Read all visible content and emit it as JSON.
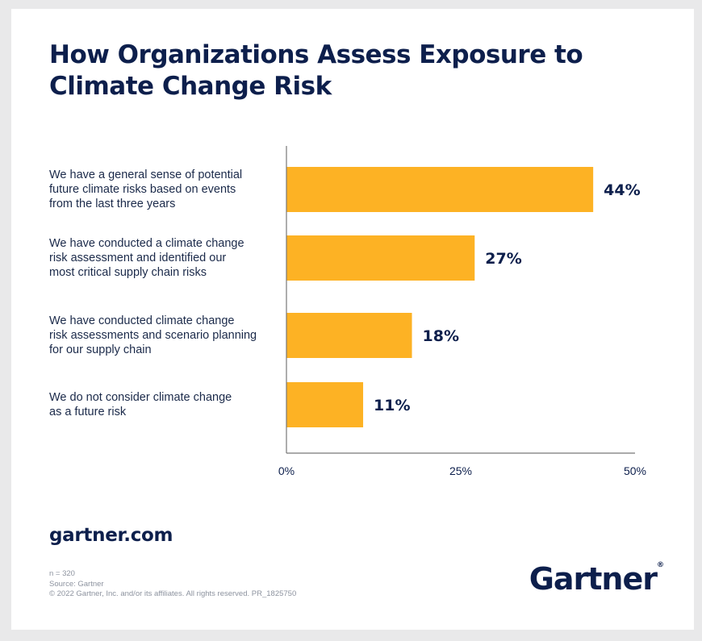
{
  "title": "How Organizations Assess Exposure to Climate Change Risk",
  "colors": {
    "bar": "#fdb224",
    "text": "#0d1f4c",
    "axis": "#777777"
  },
  "chart_data": {
    "type": "bar",
    "orientation": "horizontal",
    "categories": [
      "We have a general sense of potential future climate risks based on events from the last three years",
      "We have conducted a climate change risk assessment and identified our most critical supply chain risks",
      "We have conducted climate change risk assessments and scenario planning for our supply chain",
      "We do not consider climate change as a future risk"
    ],
    "category_lines": [
      [
        "We have a general sense of potential",
        "future climate risks based on events",
        "from the last three years"
      ],
      [
        "We have conducted a climate change",
        "risk assessment and identified our",
        "most critical supply chain risks"
      ],
      [
        "We have conducted climate change",
        "risk assessments and scenario planning",
        "for our supply chain"
      ],
      [
        "We do not consider climate change",
        "as a future risk"
      ]
    ],
    "values": [
      44,
      27,
      18,
      11
    ],
    "data_labels": [
      "44%",
      "27%",
      "18%",
      "11%"
    ],
    "xlim": [
      0,
      50
    ],
    "xticks": [
      0,
      25,
      50
    ],
    "xtick_labels": [
      "0%",
      "25%",
      "50%"
    ],
    "grid": false
  },
  "site": "gartner.com",
  "footnotes": [
    "n = 320",
    "Source: Gartner",
    "© 2022 Gartner, Inc. and/or its affiliates. All rights reserved. PR_1825750"
  ],
  "logo": {
    "text": "Gartner",
    "mark": "®"
  }
}
